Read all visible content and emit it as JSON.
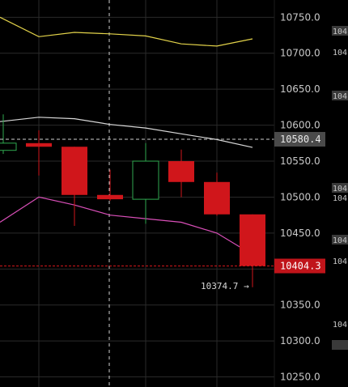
{
  "chart_data": {
    "type": "candlestick",
    "ylim": [
      10236,
      10774
    ],
    "y_ticks": [
      10750,
      10700,
      10650,
      10600,
      10550,
      10500,
      10450,
      10400,
      10350,
      10300,
      10250
    ],
    "y_tick_labels": [
      "10750.0",
      "10700.0",
      "10650.0",
      "10600.0",
      "10550.0",
      "10500.0",
      "10450.0",
      "10400.0",
      "10350.0",
      "10300.0",
      "10250.0"
    ],
    "candles": [
      {
        "open": 10565,
        "high": 10615,
        "low": 10560,
        "close": 10575,
        "direction": "up"
      },
      {
        "open": 10575,
        "high": 10593,
        "low": 10530,
        "close": 10570,
        "direction": "down"
      },
      {
        "open": 10570,
        "high": 10570,
        "low": 10460,
        "close": 10503,
        "direction": "down"
      },
      {
        "open": 10503,
        "high": 10538,
        "low": 10495,
        "close": 10497,
        "direction": "down"
      },
      {
        "open": 10497,
        "high": 10575,
        "low": 10463,
        "close": 10550,
        "direction": "up"
      },
      {
        "open": 10550,
        "high": 10566,
        "low": 10500,
        "close": 10521,
        "direction": "down"
      },
      {
        "open": 10521,
        "high": 10534,
        "low": 10474,
        "close": 10476,
        "direction": "down"
      },
      {
        "open": 10476,
        "high": 10476,
        "low": 10374.7,
        "close": 10404.3,
        "direction": "down"
      }
    ],
    "upper_line": [
      10750,
      10723,
      10729,
      10727,
      10724,
      10713,
      10710,
      10720
    ],
    "middle_line": [
      10605,
      10611,
      10609,
      10601,
      10596,
      10588,
      10580,
      10569
    ],
    "lower_line": [
      10465,
      10500,
      10489,
      10475,
      10470,
      10465,
      10450,
      10420
    ],
    "price_line": {
      "value": 10580.4,
      "label": "10580.4"
    },
    "last_price": {
      "value": 10404.3,
      "label": "10404.3"
    },
    "low_annotation": {
      "value": 10374.7,
      "label": "10374.7 →"
    },
    "colors": {
      "up": "#2fa84f",
      "down": "#d0161b",
      "upper_line": "#e3d34a",
      "middle_line": "#d8d8d8",
      "lower_line": "#d94fb8",
      "grid": "#2a2a2a"
    }
  },
  "side_panel_labels": [
    "104",
    "104",
    "104",
    "104",
    "104",
    "104",
    "104",
    "104"
  ]
}
